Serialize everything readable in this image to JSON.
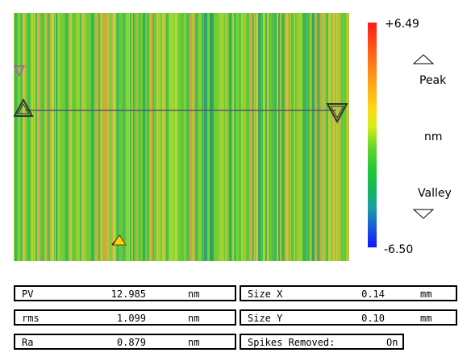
{
  "scale": {
    "max": "+6.49",
    "min": "-6.50",
    "peak_label": "Peak",
    "unit": "nm",
    "valley_label": "Valley",
    "colors": [
      "#ff1a1a",
      "#ff9a1a",
      "#ffd51a",
      "#5fd428",
      "#12b85a",
      "#1a5ad8",
      "#1414ff"
    ]
  },
  "map": {
    "markers": [
      "peak-marker-magenta",
      "profile-start-marker",
      "profile-end-marker",
      "valley-marker-orange"
    ],
    "profile_line": "horizontal-profile-line"
  },
  "stats": [
    {
      "label": "PV",
      "value": "12.985",
      "unit": "nm"
    },
    {
      "label": "rms",
      "value": "1.099",
      "unit": "nm"
    },
    {
      "label": "Ra",
      "value": "0.879",
      "unit": "nm"
    }
  ],
  "dimensions": [
    {
      "label": "Size X",
      "value": "0.14",
      "unit": "mm"
    },
    {
      "label": "Size Y",
      "value": "0.10",
      "unit": "mm"
    }
  ],
  "spikes": {
    "label": "Spikes Removed:",
    "value": "On"
  }
}
